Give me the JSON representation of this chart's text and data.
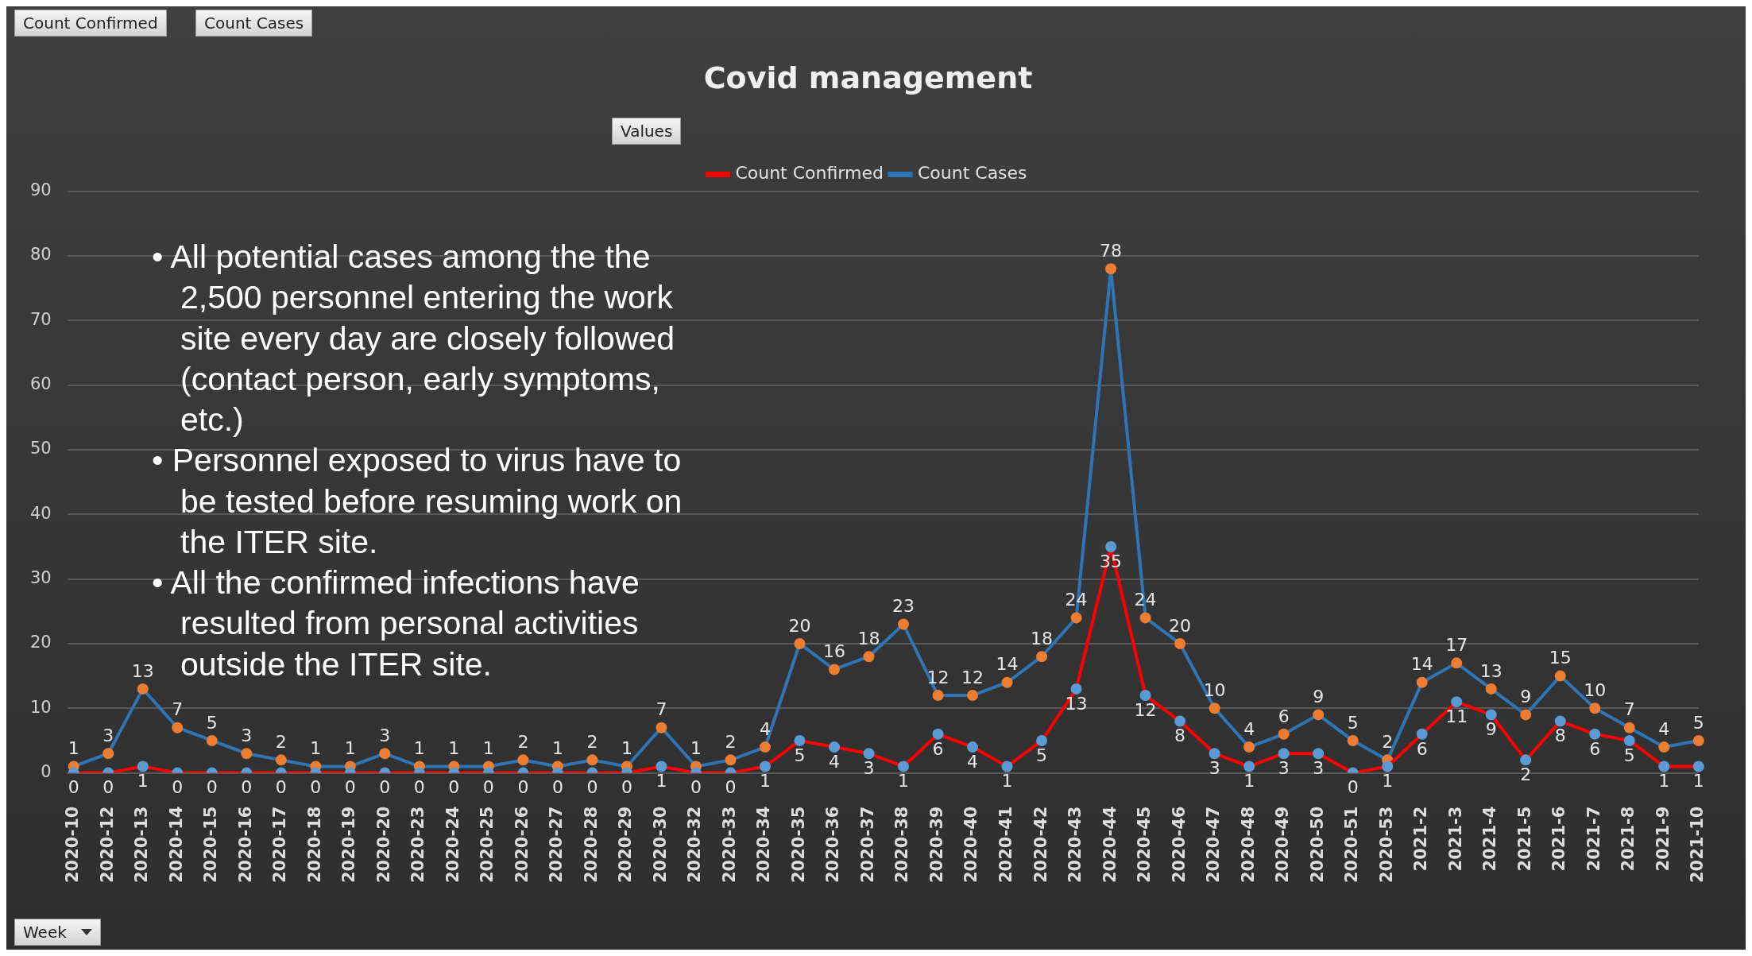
{
  "chart_data": {
    "type": "line",
    "title": "Covid management",
    "categories": [
      "2020-10",
      "2020-12",
      "2020-13",
      "2020-14",
      "2020-15",
      "2020-16",
      "2020-17",
      "2020-18",
      "2020-19",
      "2020-20",
      "2020-23",
      "2020-24",
      "2020-25",
      "2020-26",
      "2020-27",
      "2020-28",
      "2020-29",
      "2020-30",
      "2020-32",
      "2020-33",
      "2020-34",
      "2020-35",
      "2020-36",
      "2020-37",
      "2020-38",
      "2020-39",
      "2020-40",
      "2020-41",
      "2020-42",
      "2020-43",
      "2020-44",
      "2020-45",
      "2020-46",
      "2020-47",
      "2020-48",
      "2020-49",
      "2020-50",
      "2020-51",
      "2020-53",
      "2021-2",
      "2021-3",
      "2021-4",
      "2021-5",
      "2021-6",
      "2021-7",
      "2021-8",
      "2021-9",
      "2021-10"
    ],
    "series": [
      {
        "name": "Count Confirmed",
        "color": "#ff0000",
        "colors": [
          "#5b9bd5",
          "#5b9bd5",
          "#5b9bd5",
          "#5b9bd5",
          "#5b9bd5",
          "#5b9bd5",
          "#5b9bd5",
          "#5b9bd5",
          "#5b9bd5",
          "#5b9bd5",
          "#5b9bd5",
          "#5b9bd5",
          "#5b9bd5",
          "#5b9bd5",
          "#5b9bd5",
          "#5b9bd5",
          "#5b9bd5",
          "#5b9bd5",
          "#5b9bd5",
          "#5b9bd5",
          "#5b9bd5",
          "#5b9bd5",
          "#5b9bd5",
          "#5b9bd5",
          "#5b9bd5",
          "#5b9bd5",
          "#5b9bd5",
          "#5b9bd5",
          "#5b9bd5",
          "#5b9bd5",
          "#5b9bd5",
          "#5b9bd5",
          "#5b9bd5",
          "#5b9bd5",
          "#5b9bd5",
          "#5b9bd5",
          "#5b9bd5",
          "#5b9bd5",
          "#5b9bd5",
          "#5b9bd5",
          "#5b9bd5",
          "#5b9bd5",
          "#5b9bd5",
          "#5b9bd5",
          "#5b9bd5",
          "#5b9bd5",
          "#5b9bd5",
          "#5b9bd5"
        ],
        "values": [
          0,
          0,
          1,
          0,
          0,
          0,
          0,
          0,
          0,
          0,
          0,
          0,
          0,
          0,
          0,
          0,
          0,
          1,
          0,
          0,
          1,
          5,
          4,
          3,
          1,
          6,
          4,
          1,
          5,
          13,
          35,
          12,
          8,
          3,
          1,
          3,
          3,
          0,
          1,
          6,
          11,
          9,
          2,
          8,
          6,
          5,
          1,
          1
        ]
      },
      {
        "name": "Count Cases",
        "color": "#2e75b6",
        "colors": [
          "#ed7d31",
          "#ed7d31",
          "#ed7d31",
          "#ed7d31",
          "#ed7d31",
          "#ed7d31",
          "#ed7d31",
          "#ed7d31",
          "#ed7d31",
          "#ed7d31",
          "#ed7d31",
          "#ed7d31",
          "#ed7d31",
          "#ed7d31",
          "#ed7d31",
          "#ed7d31",
          "#ed7d31",
          "#ed7d31",
          "#ed7d31",
          "#ed7d31",
          "#ed7d31",
          "#ed7d31",
          "#ed7d31",
          "#ed7d31",
          "#ed7d31",
          "#ed7d31",
          "#ed7d31",
          "#ed7d31",
          "#ed7d31",
          "#ed7d31",
          "#ed7d31",
          "#ed7d31",
          "#ed7d31",
          "#ed7d31",
          "#ed7d31",
          "#ed7d31",
          "#ed7d31",
          "#ed7d31",
          "#ed7d31",
          "#ed7d31",
          "#ed7d31",
          "#ed7d31",
          "#ed7d31",
          "#ed7d31",
          "#ed7d31",
          "#ed7d31",
          "#ed7d31",
          "#ed7d31"
        ],
        "values": [
          1,
          3,
          13,
          7,
          5,
          3,
          2,
          1,
          1,
          3,
          1,
          1,
          1,
          2,
          1,
          2,
          1,
          7,
          1,
          2,
          4,
          20,
          16,
          18,
          23,
          12,
          12,
          14,
          18,
          24,
          78,
          24,
          20,
          10,
          4,
          6,
          9,
          5,
          2,
          14,
          17,
          13,
          9,
          15,
          10,
          7,
          4,
          5
        ]
      }
    ],
    "ylim": [
      0,
      90
    ],
    "yticks": [
      0,
      10,
      20,
      30,
      40,
      50,
      60,
      70,
      80,
      90
    ],
    "grid": "y",
    "legend": "top",
    "marker": "circle",
    "line_style": "solid",
    "data_labels": true,
    "annotations": [
      "• All potential cases among the the 2,500 personnel entering the work site every day are closely followed (contact person, early symptoms, etc.)",
      "• Personnel exposed to virus have to be tested before resuming work on the ITER site.",
      "• All the confirmed infections have resulted from personal activities outside the ITER site.",
      "Count Confirmed",
      "Count Cases",
      "Values",
      "Week"
    ]
  }
}
